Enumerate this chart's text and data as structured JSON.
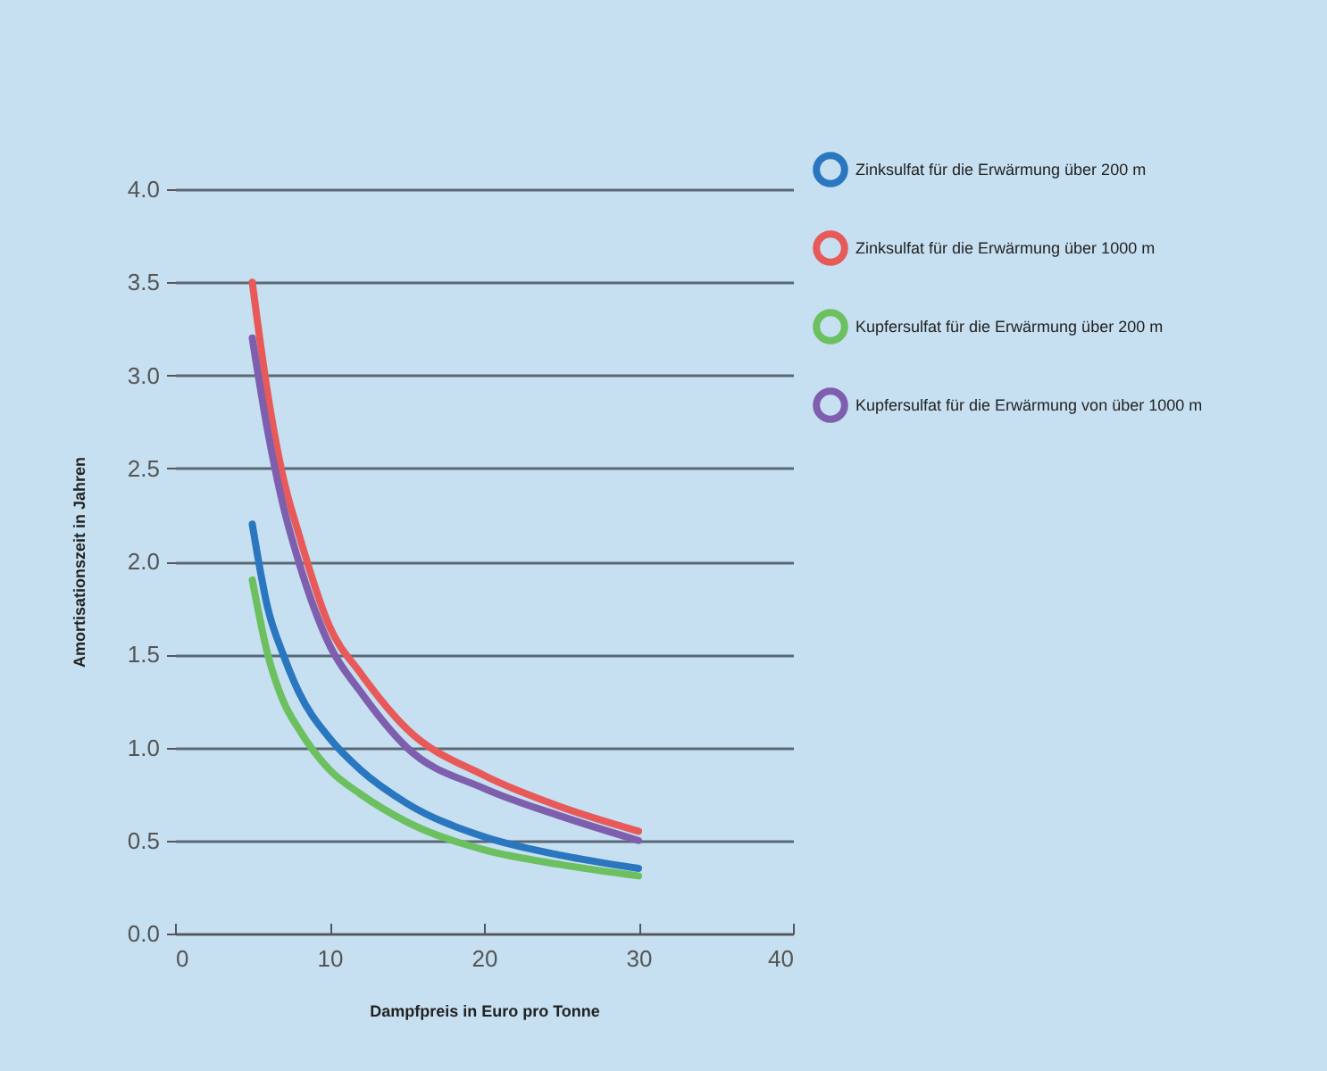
{
  "chart_data": {
    "type": "line",
    "xlabel": "Dampfpreis in Euro pro Tonne",
    "ylabel": "Amortisationszeit in Jahren",
    "x": [
      5,
      6,
      7,
      8,
      10,
      12,
      15,
      20,
      25,
      30
    ],
    "xlim": [
      0,
      40
    ],
    "xticks": [
      0,
      10,
      20,
      30,
      40
    ],
    "ylim": [
      0,
      4
    ],
    "yticks": [
      {
        "value": 0,
        "label": "0.0"
      },
      {
        "value": 0.5,
        "label": "0.5"
      },
      {
        "value": 1,
        "label": "1.0"
      },
      {
        "value": 1.5,
        "label": "1.5"
      },
      {
        "value": 2,
        "label": "2.0"
      },
      {
        "value": 2.5,
        "label": "2.5"
      },
      {
        "value": 3,
        "label": "3.0"
      },
      {
        "value": 3.5,
        "label": "3.5"
      },
      {
        "value": 4,
        "label": "4.0"
      }
    ],
    "grid": "y",
    "legend": "right",
    "series": [
      {
        "name": "Zinksulfat für die Erwärmung über 200 m",
        "color": "#2a77c0",
        "values": [
          2.2,
          1.75,
          1.5,
          1.3,
          1.05,
          0.88,
          0.7,
          0.52,
          0.42,
          0.35
        ]
      },
      {
        "name": "Zinksulfat für die Erwärmung über 1000 m",
        "color": "#e85a5a",
        "values": [
          3.5,
          2.9,
          2.45,
          2.15,
          1.65,
          1.4,
          1.1,
          0.85,
          0.68,
          0.55
        ]
      },
      {
        "name": "Kupfersulfat für die Erwärmung über 200 m",
        "color": "#6cc060",
        "values": [
          1.9,
          1.5,
          1.25,
          1.1,
          0.88,
          0.75,
          0.6,
          0.45,
          0.37,
          0.31
        ]
      },
      {
        "name": "Kupfersulfat für die Erwärmung von über 1000 m",
        "color": "#7e5fae",
        "values": [
          3.2,
          2.7,
          2.3,
          2.0,
          1.55,
          1.3,
          1.0,
          0.78,
          0.63,
          0.5
        ]
      }
    ]
  }
}
